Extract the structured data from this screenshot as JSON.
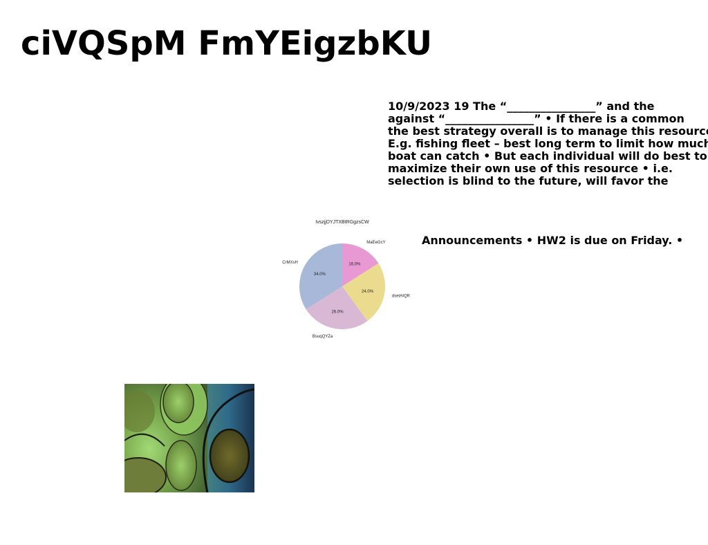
{
  "slide": {
    "title": "ciVQSpM FmYEigzbKU",
    "body_lines": [
      "10/9/2023 19 The “________________” and the",
      "against “________________” • If there is a common",
      "the best strategy overall is to manage this resource",
      "E.g. fishing fleet – best long term to limit how much",
      "boat can catch • But each individual will do best to",
      "maximize their own use of this resource • i.e.",
      "selection is blind to the future, will favor the"
    ],
    "announcement": "Announcements • HW2 is due on Friday. •"
  },
  "chart_data": {
    "type": "pie",
    "title": "IvszjjDYJTXBtRGgzsCW",
    "categories": [
      "MaEeGcY",
      "dsetAIQR",
      "BsuqQYZa",
      "CrMXsH"
    ],
    "values": [
      16.0,
      24.0,
      26.0,
      34.0
    ],
    "value_labels": [
      "16.0%",
      "24.0%",
      "26.0%",
      "34.0%"
    ],
    "colors": [
      "#e899d4",
      "#ebdb8e",
      "#d9b8d6",
      "#a8b8d8"
    ],
    "start_angle_deg": 90,
    "direction": "clockwise"
  },
  "image": {
    "icon": "abstract-green-bubbles-image"
  }
}
